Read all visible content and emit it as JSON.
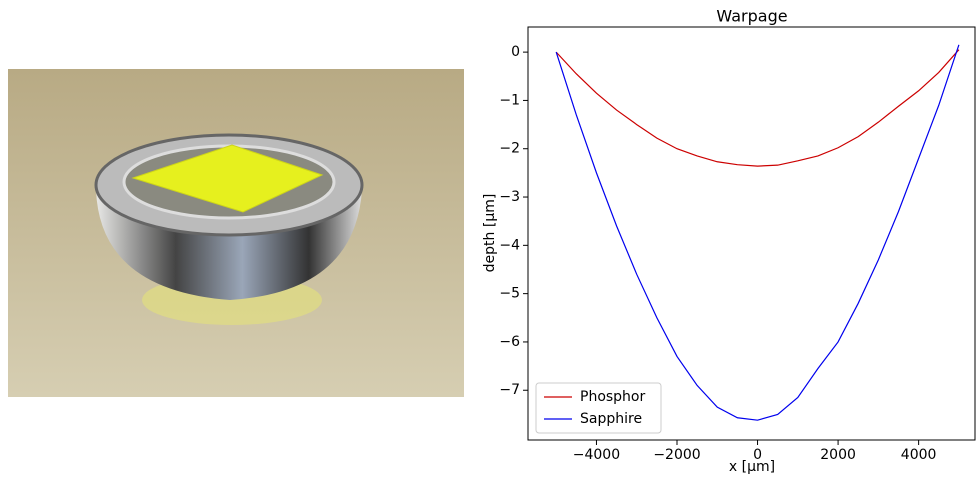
{
  "chart_data": {
    "type": "line",
    "title": "Warpage",
    "x_label": "x [μm]",
    "y_label": "depth [μm]",
    "x": [
      -5000,
      -4500,
      -4000,
      -3500,
      -3000,
      -2500,
      -2000,
      -1500,
      -1000,
      -500,
      0,
      500,
      1000,
      1500,
      2000,
      2500,
      3000,
      3500,
      4000,
      4500,
      5000
    ],
    "series": [
      {
        "name": "Phosphor",
        "color": "#cc0000",
        "values": [
          0,
          -0.45,
          -0.85,
          -1.2,
          -1.5,
          -1.78,
          -2.0,
          -2.15,
          -2.27,
          -2.33,
          -2.36,
          -2.34,
          -2.25,
          -2.15,
          -1.98,
          -1.75,
          -1.45,
          -1.12,
          -0.8,
          -0.42,
          0.05
        ]
      },
      {
        "name": "Sapphire",
        "color": "#0000ee",
        "values": [
          0,
          -1.3,
          -2.5,
          -3.6,
          -4.6,
          -5.5,
          -6.3,
          -6.9,
          -7.35,
          -7.57,
          -7.62,
          -7.5,
          -7.15,
          -6.55,
          -6.0,
          -5.2,
          -4.3,
          -3.3,
          -2.2,
          -1.1,
          0.15
        ]
      }
    ],
    "xlim": [
      -5700,
      5400
    ],
    "ylim": [
      -8.03,
      0.52
    ],
    "xticks": [
      {
        "value": -4000,
        "label": "−4000"
      },
      {
        "value": -2000,
        "label": "−2000"
      },
      0,
      2000,
      4000
    ],
    "yticks": [
      0,
      {
        "value": -1,
        "label": "−1"
      },
      {
        "value": -2,
        "label": "−2"
      },
      {
        "value": -3,
        "label": "−3"
      },
      {
        "value": -4,
        "label": "−4"
      },
      {
        "value": -5,
        "label": "−5"
      },
      {
        "value": -6,
        "label": "−6"
      },
      {
        "value": -7,
        "label": "−7"
      }
    ],
    "legend": "lower left",
    "grid": false
  }
}
